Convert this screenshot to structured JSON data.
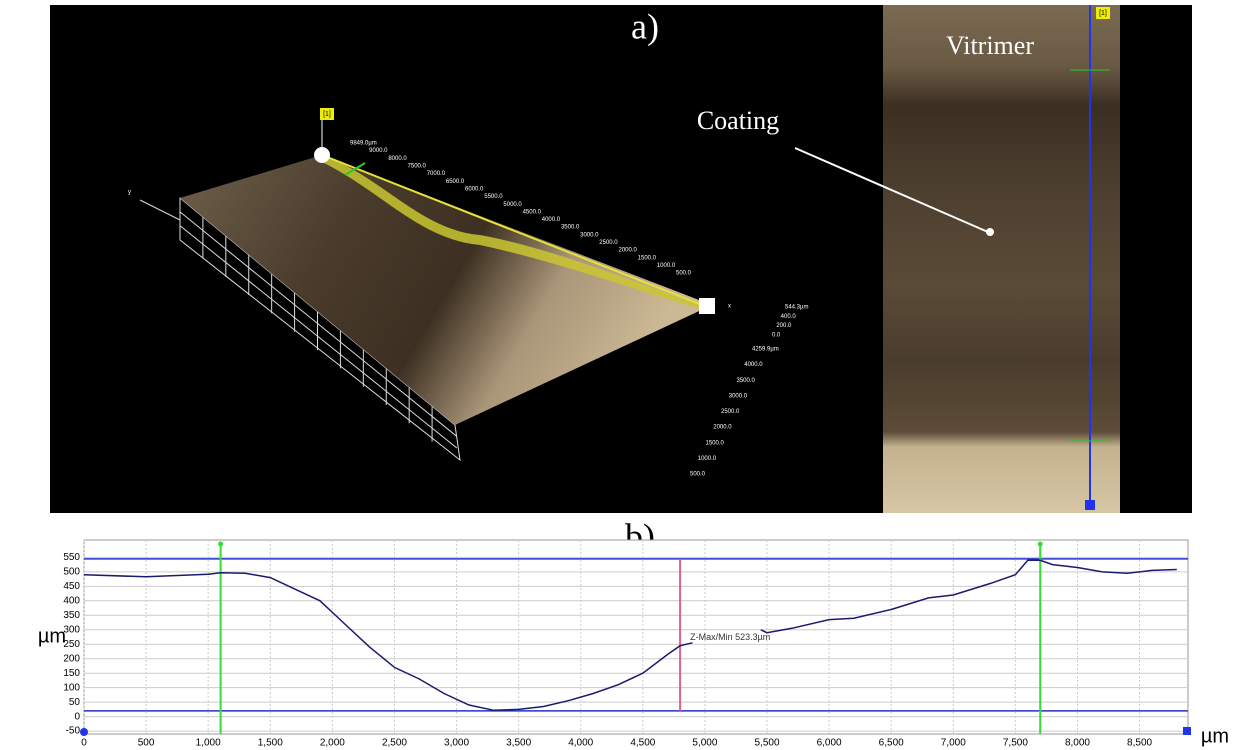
{
  "panel_a": {
    "label": "a)",
    "material": "Vitrimer",
    "coating": "Coating",
    "marker": "[1]",
    "axis_x": "x",
    "axis_y": "y",
    "x_scale": [
      "9849.0µm",
      "9000.0",
      "8000.0",
      "7500.0",
      "7000.0",
      "6500.0",
      "6000.0",
      "5500.0",
      "5000.0",
      "4500.0",
      "4000.0",
      "3500.0",
      "3000.0",
      "2500.0",
      "2000.0",
      "1500.0",
      "1000.0",
      "500.0"
    ],
    "z_scale": [
      "544.3µm",
      "400.0",
      "200.0",
      "0.0"
    ],
    "y_scale": [
      "4259.9µm",
      "4000.0",
      "3500.0",
      "3000.0",
      "2500.0",
      "2000.0",
      "1500.0",
      "1000.0",
      "500.0"
    ]
  },
  "chart_data": {
    "type": "line",
    "title": "b)",
    "ylabel": "µm",
    "xlabel": "µm",
    "x": [
      0,
      500,
      1000,
      1100,
      1300,
      1500,
      1700,
      1900,
      2100,
      2300,
      2500,
      2700,
      2900,
      3100,
      3300,
      3500,
      3700,
      3900,
      4100,
      4300,
      4500,
      4700,
      4800,
      4900,
      5200,
      5450,
      5500,
      5700,
      6000,
      6200,
      6500,
      6800,
      7000,
      7300,
      7500,
      7600,
      7700,
      7800,
      8000,
      8200,
      8400,
      8600,
      8800
    ],
    "values": [
      490,
      483,
      492,
      497,
      495,
      480,
      440,
      400,
      320,
      240,
      170,
      130,
      80,
      40,
      22,
      25,
      35,
      55,
      80,
      110,
      150,
      215,
      245,
      255,
      null,
      300,
      290,
      305,
      335,
      340,
      370,
      410,
      420,
      460,
      490,
      540,
      540,
      525,
      515,
      500,
      495,
      505,
      508
    ],
    "color": "#1a1a6e",
    "xlim": [
      0,
      8890
    ],
    "ylim": [
      -60,
      610
    ],
    "xticks": [
      0,
      500,
      {
        "value": 1000,
        "label": "1,000"
      },
      {
        "value": 1500,
        "label": "1,500"
      },
      {
        "value": 2000,
        "label": "2,000"
      },
      {
        "value": 2500,
        "label": "2,500"
      },
      {
        "value": 3000,
        "label": "3,000"
      },
      {
        "value": 3500,
        "label": "3,500"
      },
      {
        "value": 4000,
        "label": "4,000"
      },
      {
        "value": 4500,
        "label": "4,500"
      },
      {
        "value": 5000,
        "label": "5,000"
      },
      {
        "value": 5500,
        "label": "5,500"
      },
      {
        "value": 6000,
        "label": "6,000"
      },
      {
        "value": 6500,
        "label": "6,500"
      },
      {
        "value": 7000,
        "label": "7,000"
      },
      {
        "value": 7500,
        "label": "7,500"
      },
      {
        "value": 8000,
        "label": "8,000"
      },
      {
        "value": 8500,
        "label": "8,500"
      }
    ],
    "yticks": [
      -50,
      0,
      50,
      100,
      150,
      200,
      250,
      300,
      350,
      400,
      450,
      500,
      550
    ],
    "grid": true,
    "cursor_levels": [
      545,
      20
    ],
    "cursor_level_color": "#2233cc",
    "cursor_positions": [
      1100,
      7700
    ],
    "cursor_position_color": "#33dd33",
    "annotation": {
      "text": "Z-Max/Min 523.3µm",
      "x": 4800,
      "color": "#e06090"
    }
  }
}
